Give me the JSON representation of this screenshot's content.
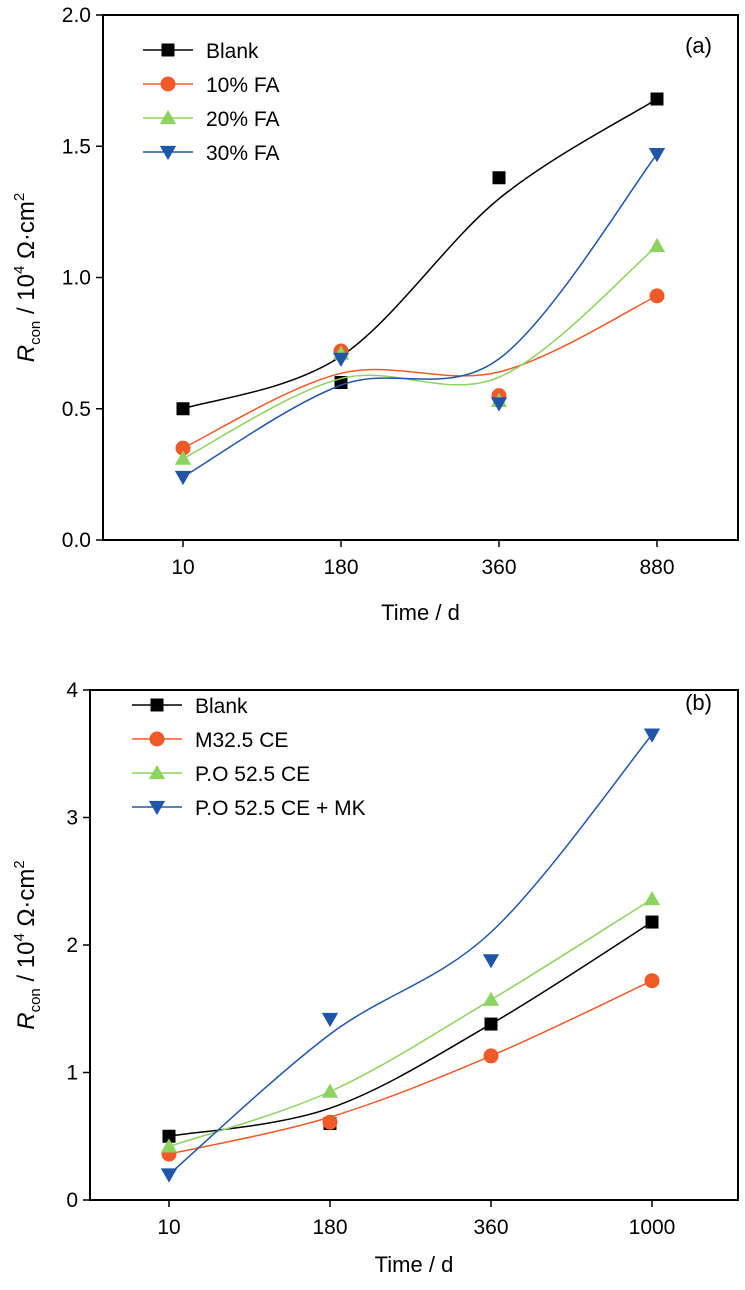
{
  "chart_data": [
    {
      "type": "line",
      "panel": "(a)",
      "categories": [
        "10",
        "180",
        "360",
        "880"
      ],
      "xlabel": "Time / d",
      "ylabel": {
        "italic": "R",
        "sub": "con",
        "text": " / 10",
        "sup4": "4",
        "unit": " Ω·cm",
        "sup2": "2"
      },
      "ylim": [
        0,
        2.0
      ],
      "yticks": [
        "0.0",
        "0.5",
        "1.0",
        "1.5",
        "2.0"
      ],
      "legend_position": "top-left",
      "series": [
        {
          "name": "Blank",
          "color": "#000000",
          "marker": "square",
          "values": [
            0.5,
            0.6,
            1.38,
            1.68
          ]
        },
        {
          "name": "10% FA",
          "color": "#f05a28",
          "marker": "circle",
          "values": [
            0.35,
            0.72,
            0.55,
            0.93
          ]
        },
        {
          "name": "20% FA",
          "color": "#8dd35f",
          "marker": "triangle-up",
          "values": [
            0.31,
            0.71,
            0.53,
            1.12
          ]
        },
        {
          "name": "30% FA",
          "color": "#1f56a8",
          "marker": "triangle-down",
          "values": [
            0.24,
            0.69,
            0.52,
            1.47
          ]
        }
      ],
      "curves": [
        [
          0.5,
          0.7,
          1.3,
          1.68
        ],
        [
          0.35,
          0.635,
          0.64,
          0.93
        ],
        [
          0.31,
          0.615,
          0.62,
          1.12
        ],
        [
          0.24,
          0.59,
          0.69,
          1.47
        ]
      ]
    },
    {
      "type": "line",
      "panel": "(b)",
      "categories": [
        "10",
        "180",
        "360",
        "1000"
      ],
      "xlabel": "Time / d",
      "ylabel": {
        "italic": "R",
        "sub": "con",
        "text": " / 10",
        "sup4": "4",
        "unit": " Ω·cm",
        "sup2": "2"
      },
      "ylim": [
        0,
        4
      ],
      "yticks": [
        "0",
        "1",
        "2",
        "3",
        "4"
      ],
      "legend_position": "top-left",
      "series": [
        {
          "name": "Blank",
          "color": "#000000",
          "marker": "square",
          "values": [
            0.5,
            0.6,
            1.38,
            2.18
          ]
        },
        {
          "name": "M32.5 CE",
          "color": "#f05a28",
          "marker": "circle",
          "values": [
            0.36,
            0.61,
            1.13,
            1.72
          ]
        },
        {
          "name": "P.O 52.5 CE",
          "color": "#8dd35f",
          "marker": "triangle-up",
          "values": [
            0.42,
            0.85,
            1.57,
            2.36
          ]
        },
        {
          "name": "P.O 52.5 CE + MK",
          "color": "#1f56a8",
          "marker": "triangle-down",
          "values": [
            0.2,
            1.42,
            1.88,
            3.65
          ]
        }
      ],
      "curves": [
        [
          0.5,
          0.72,
          1.38,
          2.18
        ],
        [
          0.36,
          0.65,
          1.13,
          1.72
        ],
        [
          0.42,
          0.85,
          1.57,
          2.36
        ],
        [
          0.2,
          1.3,
          2.1,
          3.65
        ]
      ]
    }
  ]
}
